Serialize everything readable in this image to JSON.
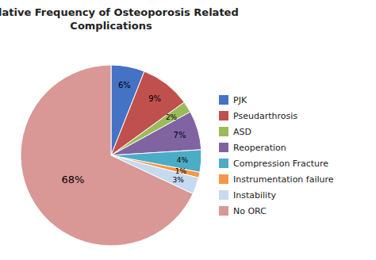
{
  "chart_data": {
    "type": "pie",
    "title": "Relative Frequency of Osteoporosis Related\nComplications",
    "categories": [
      "PJK",
      "Pseudarthrosis",
      "ASD",
      "Reoperation",
      "Compression Fracture",
      "Instrumentation failure",
      "Instability",
      "No ORC"
    ],
    "values": [
      6,
      9,
      2,
      7,
      4,
      1,
      3,
      68
    ],
    "value_labels": [
      "6%",
      "9%",
      "2%",
      "7%",
      "4%",
      "1%",
      "3%",
      "68%"
    ],
    "colors": [
      "#4472C4",
      "#C0504D",
      "#9BBB59",
      "#8064A2",
      "#4BACC6",
      "#F79646",
      "#C5D9F1",
      "#D99795"
    ],
    "data_labels": true,
    "legend": "right"
  }
}
